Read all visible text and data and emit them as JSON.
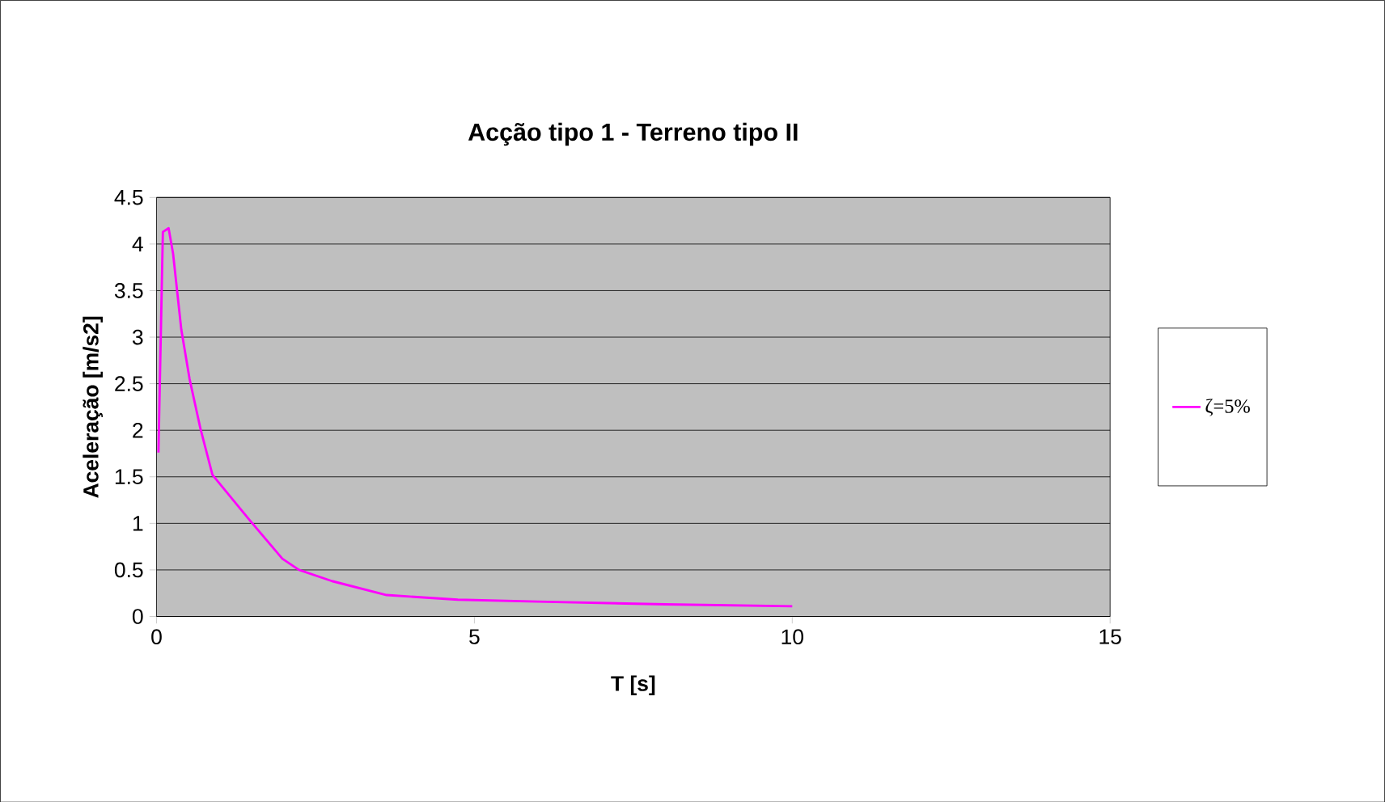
{
  "chart_data": {
    "type": "line",
    "title": "Acção tipo 1 - Terreno tipo II",
    "xlabel": "T [s]",
    "ylabel": "Aceleração [m/s2]",
    "xlim": [
      0,
      15
    ],
    "xticks": [
      0,
      5,
      10,
      15
    ],
    "ylim": [
      0,
      4.5
    ],
    "yticks": [
      0,
      0.5,
      1,
      1.5,
      2,
      2.5,
      3,
      3.5,
      4,
      4.5
    ],
    "grid": "y",
    "legend": "right",
    "marker": "none",
    "line_style": "solid",
    "series": [
      {
        "name": "ζ=5%",
        "color": "#ff00ff",
        "x": [
          0.03,
          0.1,
          0.19,
          0.26,
          0.39,
          0.52,
          0.69,
          0.88,
          1.47,
          1.98,
          2.24,
          2.76,
          3.62,
          4.74,
          6,
          8,
          10
        ],
        "values": [
          1.76,
          4.13,
          4.17,
          3.9,
          3.08,
          2.55,
          2.02,
          1.52,
          1.03,
          0.62,
          0.5,
          0.38,
          0.23,
          0.18,
          0.16,
          0.13,
          0.11
        ]
      }
    ]
  }
}
